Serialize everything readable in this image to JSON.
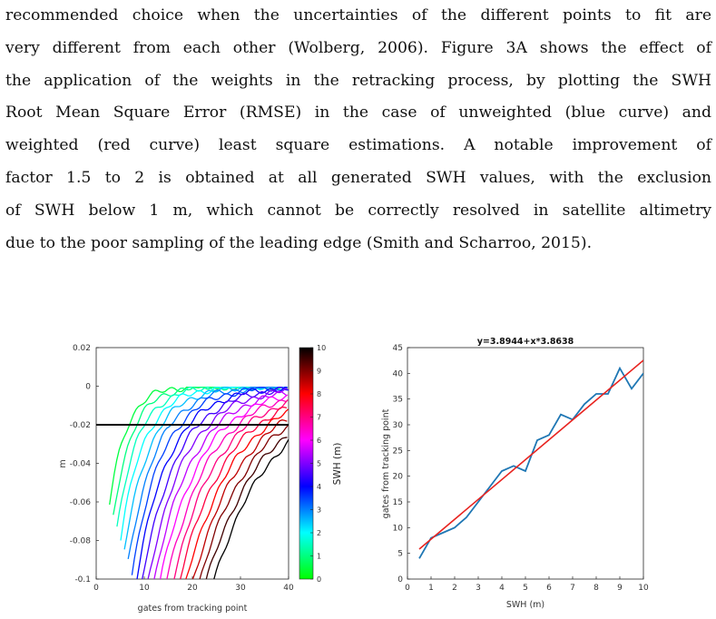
{
  "paragraph": {
    "lines": [
      "recommended choice when the uncertainties of the different points to fit are",
      "very different from each other (Wolberg, 2006). Figure 3A shows the effect of",
      "the application of the weights in the retracking process, by plotting the SWH",
      "Root Mean Square Error (RMSE) in the case of unweighted (blue curve) and",
      "weighted (red curve) least square estimations. A notable improvement of",
      "factor 1.5 to 2 is obtained at all generated SWH values, with the exclusion",
      "of SWH below 1 m, which cannot be correctly resolved in satellite altimetry",
      "due to the poor sampling of the leading edge (Smith and Scharroo, 2015)."
    ]
  },
  "chart_data": [
    {
      "type": "line",
      "xlabel": "gates from tracking point",
      "ylabel": "m",
      "xlim": [
        0,
        40
      ],
      "ylim": [
        -0.1,
        0.02
      ],
      "xticks": [
        0,
        10,
        20,
        30,
        40
      ],
      "yticks": [
        0.02,
        0,
        -0.02,
        -0.04,
        -0.06,
        -0.08,
        -0.1
      ],
      "ytick_labels": [
        "0.02",
        "0",
        "-0.02",
        "-0.04",
        "-0.06",
        "-0.08",
        "-0.1"
      ],
      "hline": -0.02,
      "colorbar": {
        "label": "SWH (m)",
        "range": [
          0,
          10
        ],
        "ticks": [
          0,
          1,
          2,
          3,
          4,
          5,
          6,
          7,
          8,
          9,
          10
        ]
      },
      "series_swh": [
        0.5,
        1,
        1.5,
        2,
        2.5,
        3,
        3.5,
        4,
        4.5,
        5,
        5.5,
        6,
        6.5,
        7,
        7.5,
        8,
        8.5,
        9,
        9.5,
        10
      ]
    },
    {
      "type": "line",
      "title": "y=3.8944+x*3.8638",
      "xlabel": "SWH (m)",
      "ylabel": "gates from tracking point",
      "xlim": [
        0,
        10
      ],
      "ylim": [
        0,
        45
      ],
      "xticks": [
        0,
        1,
        2,
        3,
        4,
        5,
        6,
        7,
        8,
        9,
        10
      ],
      "yticks": [
        0,
        5,
        10,
        15,
        20,
        25,
        30,
        35,
        40,
        45
      ],
      "series": [
        {
          "color": "#1f77b4",
          "x": [
            0.5,
            1,
            1.5,
            2,
            2.5,
            3,
            3.5,
            4,
            4.5,
            5,
            5.5,
            6,
            6.5,
            7,
            7.5,
            8,
            8.5,
            9,
            9.5,
            10
          ],
          "y": [
            4,
            8,
            9,
            10,
            12,
            15,
            18,
            21,
            22,
            21,
            27,
            28,
            32,
            31,
            34,
            36,
            36,
            41,
            37,
            40
          ]
        },
        {
          "color": "#e8231f",
          "x": [
            0.5,
            10
          ],
          "y": [
            5.8263,
            42.5324
          ]
        }
      ]
    }
  ]
}
